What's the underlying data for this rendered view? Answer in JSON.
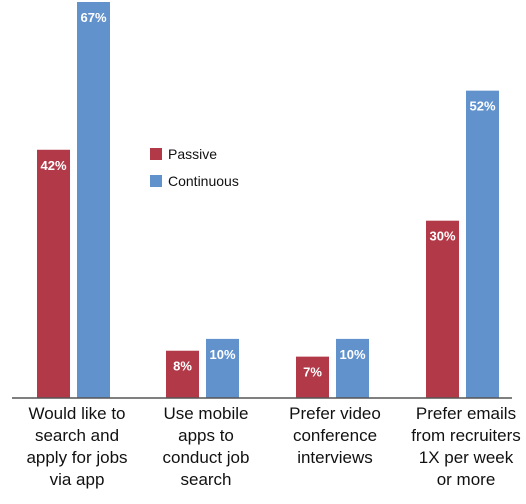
{
  "chart_data": {
    "type": "bar",
    "title": "",
    "xlabel": "",
    "ylabel": "",
    "ylim": [
      0,
      67
    ],
    "grid": false,
    "legend_position": "center-left",
    "categories": [
      [
        "Would like to",
        "search and",
        "apply for jobs",
        "via app"
      ],
      [
        "Use mobile",
        "apps to",
        "conduct job",
        "search"
      ],
      [
        "Prefer video",
        "conference",
        "interviews"
      ],
      [
        "Prefer emails",
        "from recruiters",
        "1X per week",
        "or more"
      ]
    ],
    "series": [
      {
        "name": "Passive",
        "color": "#b23a48",
        "values": [
          42,
          8,
          7,
          30
        ],
        "labels": [
          "42%",
          "8%",
          "7%",
          "30%"
        ]
      },
      {
        "name": "Continuous",
        "color": "#6192cc",
        "values": [
          67,
          10,
          10,
          52
        ],
        "labels": [
          "67%",
          "10%",
          "10%",
          "52%"
        ]
      }
    ]
  }
}
